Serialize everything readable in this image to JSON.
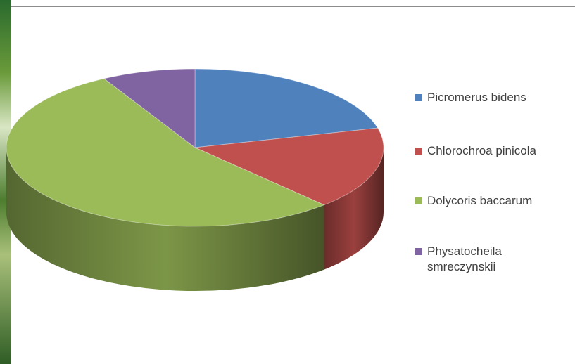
{
  "chart_data": {
    "type": "pie",
    "title": "",
    "style": "3d",
    "legend_position": "right",
    "categories": [
      "Picromerus bidens",
      "Chlorochroa pinicola",
      "Dolycoris baccarum",
      "Physatocheila smreczynskii"
    ],
    "values": [
      21,
      17,
      54,
      8
    ],
    "colors": [
      "#4f81bd",
      "#c0504d",
      "#9bbb59",
      "#8064a2"
    ],
    "legend": [
      {
        "label": "Picromerus bidens",
        "color": "#4f81bd"
      },
      {
        "label": "Chlorochroa pinicola",
        "color": "#c0504d"
      },
      {
        "label": "Dolycoris baccarum",
        "color": "#9bbb59"
      },
      {
        "label": "Physatocheila smreczynskii",
        "color": "#8064a2"
      }
    ]
  }
}
